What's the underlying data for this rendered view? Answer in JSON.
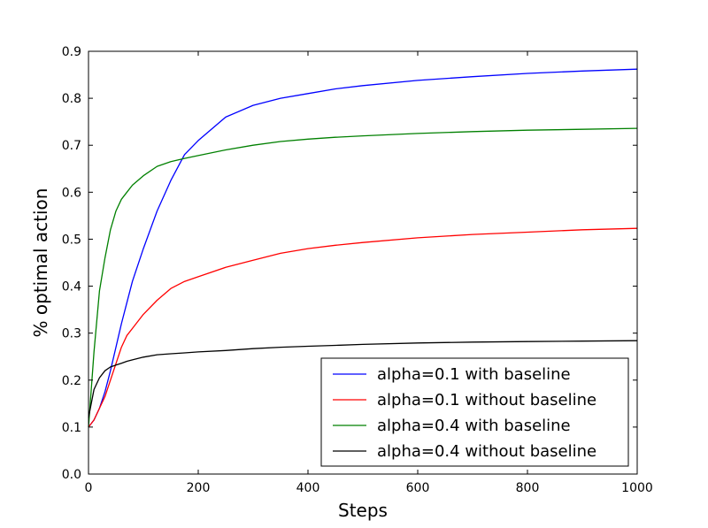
{
  "chart_data": {
    "type": "line",
    "title": "",
    "xlabel": "Steps",
    "ylabel": "% optimal action",
    "xlim": [
      0,
      1000
    ],
    "ylim": [
      0.0,
      0.9
    ],
    "x_ticks": [
      "0",
      "200",
      "400",
      "600",
      "800",
      "1000"
    ],
    "y_ticks": [
      "0.0",
      "0.1",
      "0.2",
      "0.3",
      "0.4",
      "0.5",
      "0.6",
      "0.7",
      "0.8",
      "0.9"
    ],
    "grid": false,
    "legend_position": "lower-right",
    "x": [
      0,
      10,
      20,
      30,
      40,
      50,
      60,
      70,
      80,
      100,
      125,
      150,
      175,
      200,
      250,
      300,
      350,
      400,
      450,
      500,
      600,
      700,
      800,
      900,
      1000
    ],
    "series": [
      {
        "name": "alpha=0.1 with baseline",
        "color": "#0000ff",
        "values": [
          0.1,
          0.115,
          0.14,
          0.175,
          0.22,
          0.27,
          0.32,
          0.365,
          0.41,
          0.48,
          0.56,
          0.625,
          0.68,
          0.71,
          0.76,
          0.785,
          0.8,
          0.81,
          0.82,
          0.827,
          0.838,
          0.846,
          0.853,
          0.858,
          0.862
        ]
      },
      {
        "name": "alpha=0.1 without baseline",
        "color": "#ff0000",
        "values": [
          0.1,
          0.115,
          0.14,
          0.165,
          0.2,
          0.235,
          0.27,
          0.295,
          0.31,
          0.34,
          0.37,
          0.395,
          0.41,
          0.42,
          0.44,
          0.455,
          0.47,
          0.48,
          0.487,
          0.493,
          0.503,
          0.51,
          0.515,
          0.52,
          0.523
        ]
      },
      {
        "name": "alpha=0.4 with baseline",
        "color": "#008000",
        "values": [
          0.1,
          0.26,
          0.39,
          0.46,
          0.52,
          0.56,
          0.585,
          0.6,
          0.615,
          0.635,
          0.655,
          0.665,
          0.672,
          0.678,
          0.69,
          0.7,
          0.708,
          0.713,
          0.717,
          0.72,
          0.725,
          0.729,
          0.732,
          0.734,
          0.736
        ]
      },
      {
        "name": "alpha=0.4 without baseline",
        "color": "#000000",
        "values": [
          0.12,
          0.18,
          0.205,
          0.22,
          0.228,
          0.232,
          0.236,
          0.24,
          0.243,
          0.249,
          0.254,
          0.256,
          0.258,
          0.26,
          0.263,
          0.267,
          0.27,
          0.272,
          0.274,
          0.276,
          0.279,
          0.281,
          0.282,
          0.283,
          0.284
        ]
      }
    ]
  }
}
